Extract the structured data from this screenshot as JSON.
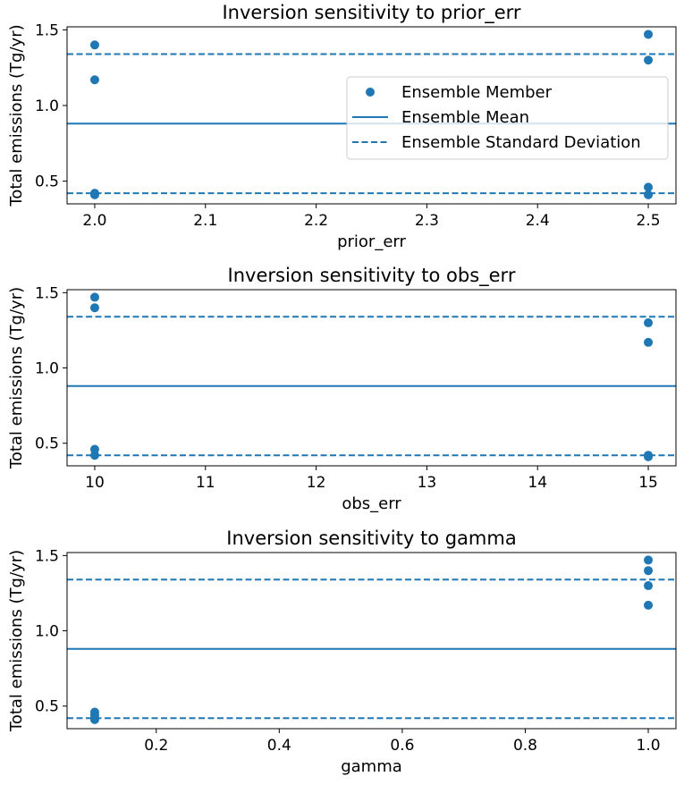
{
  "colors": {
    "series": "#1f77b4",
    "axis": "#000000",
    "legend_border": "#cccccc"
  },
  "legend": {
    "placement": "upper-right of first subplot",
    "member_label": "Ensemble Member",
    "mean_label": "Ensemble Mean",
    "std_label": "Ensemble Standard Deviation"
  },
  "chart_data": [
    {
      "type": "scatter",
      "title": "Inversion sensitivity to prior_err",
      "xlabel": "prior_err",
      "ylabel": "Total emissions (Tg/yr)",
      "xlim": [
        1.975,
        2.525
      ],
      "ylim": [
        0.35,
        1.52
      ],
      "xticks": [
        2.0,
        2.1,
        2.2,
        2.3,
        2.4,
        2.5
      ],
      "xtick_labels": [
        "2.0",
        "2.1",
        "2.2",
        "2.3",
        "2.4",
        "2.5"
      ],
      "yticks": [
        0.5,
        1.0,
        1.5
      ],
      "ytick_labels": [
        "0.5",
        "1.0",
        "1.5"
      ],
      "grid": false,
      "legend": true,
      "x": [
        2.0,
        2.0,
        2.0,
        2.0,
        2.5,
        2.5,
        2.5,
        2.5
      ],
      "y": [
        1.4,
        1.17,
        0.42,
        0.41,
        1.47,
        1.3,
        0.46,
        0.41
      ],
      "mean": 0.88,
      "std_lines": [
        1.34,
        0.42
      ]
    },
    {
      "type": "scatter",
      "title": "Inversion sensitivity to obs_err",
      "xlabel": "obs_err",
      "ylabel": "Total emissions (Tg/yr)",
      "xlim": [
        9.75,
        15.25
      ],
      "ylim": [
        0.35,
        1.52
      ],
      "xticks": [
        10,
        11,
        12,
        13,
        14,
        15
      ],
      "xtick_labels": [
        "10",
        "11",
        "12",
        "13",
        "14",
        "15"
      ],
      "yticks": [
        0.5,
        1.0,
        1.5
      ],
      "ytick_labels": [
        "0.5",
        "1.0",
        "1.5"
      ],
      "grid": false,
      "legend": false,
      "x": [
        10,
        10,
        10,
        10,
        15,
        15,
        15,
        15
      ],
      "y": [
        1.47,
        1.4,
        0.46,
        0.42,
        1.3,
        1.17,
        0.42,
        0.41
      ],
      "mean": 0.88,
      "std_lines": [
        1.34,
        0.42
      ]
    },
    {
      "type": "scatter",
      "title": "Inversion sensitivity to gamma",
      "xlabel": "gamma",
      "ylabel": "Total emissions (Tg/yr)",
      "xlim": [
        0.055,
        1.045
      ],
      "ylim": [
        0.35,
        1.52
      ],
      "xticks": [
        0.2,
        0.4,
        0.6,
        0.8,
        1.0
      ],
      "xtick_labels": [
        "0.2",
        "0.4",
        "0.6",
        "0.8",
        "1.0"
      ],
      "yticks": [
        0.5,
        1.0,
        1.5
      ],
      "ytick_labels": [
        "0.5",
        "1.0",
        "1.5"
      ],
      "grid": false,
      "legend": false,
      "x": [
        0.1,
        0.1,
        0.1,
        0.1,
        1.0,
        1.0,
        1.0,
        1.0
      ],
      "y": [
        0.46,
        0.44,
        0.42,
        0.41,
        1.47,
        1.4,
        1.3,
        1.17
      ],
      "mean": 0.88,
      "std_lines": [
        1.34,
        0.42
      ]
    }
  ]
}
